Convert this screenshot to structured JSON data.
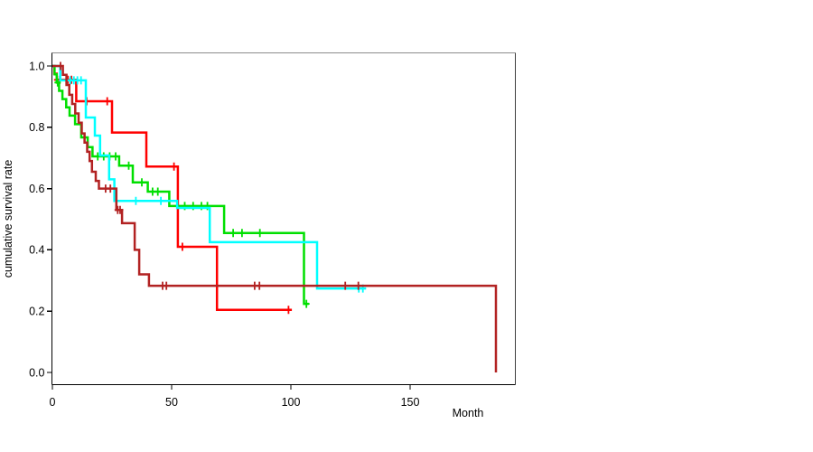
{
  "figure": {
    "background": "#ffffff"
  },
  "chart_data": {
    "type": "line",
    "subtype": "kaplan-meier-step-survival",
    "title": "",
    "xlabel": "Month",
    "ylabel": "cumulative survival rate",
    "x_ticks": [
      0,
      50,
      100,
      150
    ],
    "y_ticks": [
      0.0,
      0.2,
      0.4,
      0.6,
      0.8,
      1.0
    ],
    "xlim": [
      0,
      194
    ],
    "ylim": [
      -0.04,
      1.04
    ],
    "grid": false,
    "legend": "none",
    "frame": {
      "axis_color": "#000000",
      "box_top_color": "#8c8c8c",
      "box_right_color": "#3f3f3f"
    },
    "series": [
      {
        "name": "red",
        "color": "#ff0000",
        "line_width": 2.5,
        "points": [
          [
            0,
            1.0
          ],
          [
            0.8,
            0.975
          ],
          [
            1.8,
            0.955
          ],
          [
            10,
            0.885
          ],
          [
            25,
            0.783
          ],
          [
            39.4,
            0.672
          ],
          [
            52.6,
            0.41
          ],
          [
            69,
            0.204
          ]
        ],
        "end_month": 100.4,
        "censors": [
          [
            2.0,
            0.955
          ],
          [
            3.1,
            0.955
          ],
          [
            6.5,
            0.955
          ],
          [
            8.0,
            0.955
          ],
          [
            14.4,
            0.885
          ],
          [
            23,
            0.885
          ],
          [
            51,
            0.672
          ],
          [
            54.5,
            0.41
          ],
          [
            99,
            0.204
          ]
        ]
      },
      {
        "name": "green",
        "color": "#00df00",
        "line_width": 2.5,
        "points": [
          [
            0,
            1.0
          ],
          [
            0.9,
            0.973
          ],
          [
            1.8,
            0.946
          ],
          [
            2.8,
            0.919
          ],
          [
            4.2,
            0.892
          ],
          [
            5.8,
            0.865
          ],
          [
            7.2,
            0.838
          ],
          [
            9.5,
            0.81
          ],
          [
            12.1,
            0.767
          ],
          [
            14.8,
            0.735
          ],
          [
            16.8,
            0.705
          ],
          [
            28,
            0.675
          ],
          [
            33.7,
            0.62
          ],
          [
            40,
            0.59
          ],
          [
            49,
            0.543
          ],
          [
            72,
            0.455
          ],
          [
            105.5,
            0.224
          ]
        ],
        "end_month": 107.5,
        "censors": [
          [
            2.2,
            0.946
          ],
          [
            19,
            0.705
          ],
          [
            21.5,
            0.705
          ],
          [
            24,
            0.705
          ],
          [
            26.5,
            0.705
          ],
          [
            32,
            0.675
          ],
          [
            37.5,
            0.62
          ],
          [
            42,
            0.59
          ],
          [
            44.2,
            0.59
          ],
          [
            55.5,
            0.543
          ],
          [
            59,
            0.543
          ],
          [
            62.5,
            0.543
          ],
          [
            65,
            0.543
          ],
          [
            75.8,
            0.455
          ],
          [
            79.5,
            0.455
          ],
          [
            87,
            0.455
          ],
          [
            106.5,
            0.224
          ]
        ]
      },
      {
        "name": "cyan",
        "color": "#00ffff",
        "line_width": 2.5,
        "points": [
          [
            0,
            1.0
          ],
          [
            3.3,
            0.953
          ],
          [
            14,
            0.832
          ],
          [
            17.8,
            0.773
          ],
          [
            20,
            0.708
          ],
          [
            23.8,
            0.63
          ],
          [
            26,
            0.56
          ],
          [
            52.3,
            0.537
          ],
          [
            66,
            0.425
          ],
          [
            111,
            0.274
          ]
        ],
        "end_month": 131.5,
        "censors": [
          [
            6,
            0.953
          ],
          [
            7.5,
            0.953
          ],
          [
            9,
            0.953
          ],
          [
            10.5,
            0.953
          ],
          [
            12,
            0.953
          ],
          [
            35,
            0.56
          ],
          [
            45.5,
            0.56
          ],
          [
            128.5,
            0.274
          ],
          [
            130.2,
            0.274
          ]
        ]
      },
      {
        "name": "dark-red",
        "color": "#b22222",
        "line_width": 2.5,
        "points": [
          [
            0,
            1.0
          ],
          [
            4.4,
            0.971
          ],
          [
            5.9,
            0.938
          ],
          [
            7.1,
            0.906
          ],
          [
            8.3,
            0.876
          ],
          [
            9.6,
            0.845
          ],
          [
            11,
            0.815
          ],
          [
            12.3,
            0.78
          ],
          [
            13.5,
            0.75
          ],
          [
            14.6,
            0.72
          ],
          [
            15.6,
            0.69
          ],
          [
            16.6,
            0.655
          ],
          [
            18.2,
            0.625
          ],
          [
            19.5,
            0.6
          ],
          [
            26.8,
            0.53
          ],
          [
            29.2,
            0.487
          ],
          [
            34.5,
            0.4
          ],
          [
            36.4,
            0.32
          ],
          [
            40.5,
            0.283
          ],
          [
            186,
            0.0
          ]
        ],
        "end_month": 186,
        "censors": [
          [
            3.4,
            1.0
          ],
          [
            22.3,
            0.6
          ],
          [
            24.3,
            0.6
          ],
          [
            27.4,
            0.53
          ],
          [
            28.4,
            0.53
          ],
          [
            46.2,
            0.283
          ],
          [
            47.8,
            0.283
          ],
          [
            84.8,
            0.283
          ],
          [
            86.8,
            0.283
          ],
          [
            122.8,
            0.283
          ],
          [
            128.3,
            0.283
          ]
        ]
      }
    ]
  }
}
